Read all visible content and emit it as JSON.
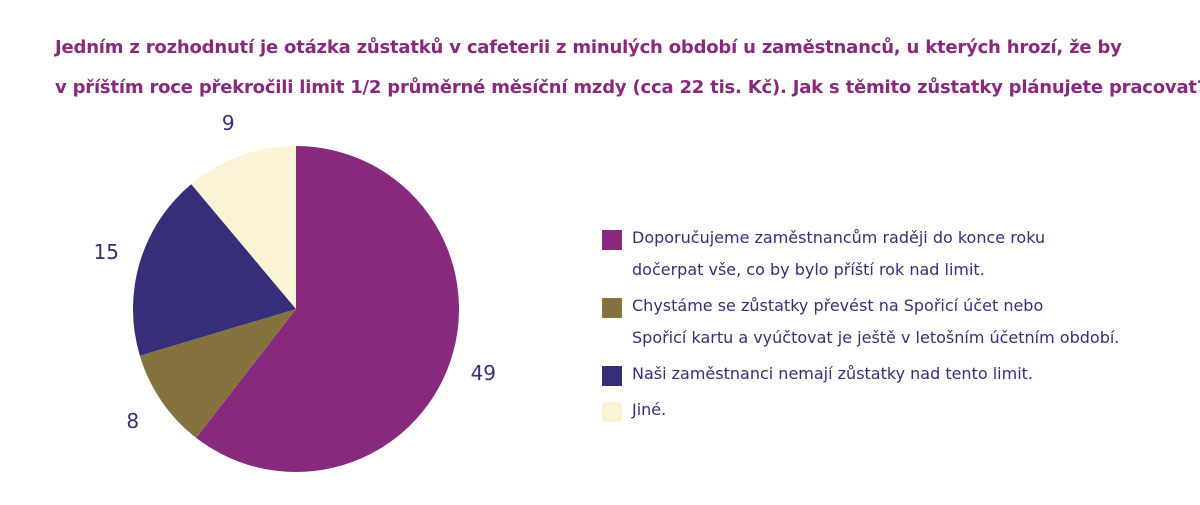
{
  "title": {
    "line1": "Jedním z rozhodnutí je otázka zůstatků v cafeterii z minulých období u zaměstnanců, u kterých hrozí, že by",
    "line2": "v příštím roce překročili limit 1/2 průměrné měsíční mzdy (cca 22 tis. Kč). Jak s těmito zůstatky plánujete pracovat?"
  },
  "colors": {
    "title": "#872a7d",
    "text": "#372e7a"
  },
  "chart_data": {
    "type": "pie",
    "title": "Jedním z rozhodnutí je otázka zůstatků v cafeterii z minulých období u zaměstnanců, u kterých hrozí, že by v příštím roce překročili limit 1/2 průměrné měsíční mzdy (cca 22 tis. Kč). Jak s těmito zůstatky plánujete pracovat?",
    "categories": [
      "Doporučujeme zaměstnancům raději do konce roku dočerpat vše, co by bylo příští rok nad limit.",
      "Chystáme se zůstatky převést na Spořicí účet nebo Spořicí kartu a vyúčtovat je ještě v letošním účetním období.",
      "Naši zaměstnanci nemají zůstatky nad tento limit.",
      "Jiné."
    ],
    "values": [
      49,
      8,
      15,
      9
    ],
    "colors": [
      "#872a7d",
      "#84723f",
      "#372e7a",
      "#faf3d5"
    ],
    "legend_position": "right"
  },
  "legend": {
    "items": [
      {
        "lines": [
          "Doporučujeme zaměstnancům raději do konce roku",
          "dočerpat vše, co by bylo příští rok nad limit."
        ],
        "color": "#872a7d"
      },
      {
        "lines": [
          "Chystáme se zůstatky převést na Spořicí účet nebo",
          "Spořicí kartu a vyúčtovat je ještě v letošním účetním období."
        ],
        "color": "#84723f"
      },
      {
        "lines": [
          "Naši zaměstnanci nemají zůstatky nad tento limit."
        ],
        "color": "#372e7a"
      },
      {
        "lines": [
          "Jiné."
        ],
        "color": "#faf3d5"
      }
    ]
  }
}
